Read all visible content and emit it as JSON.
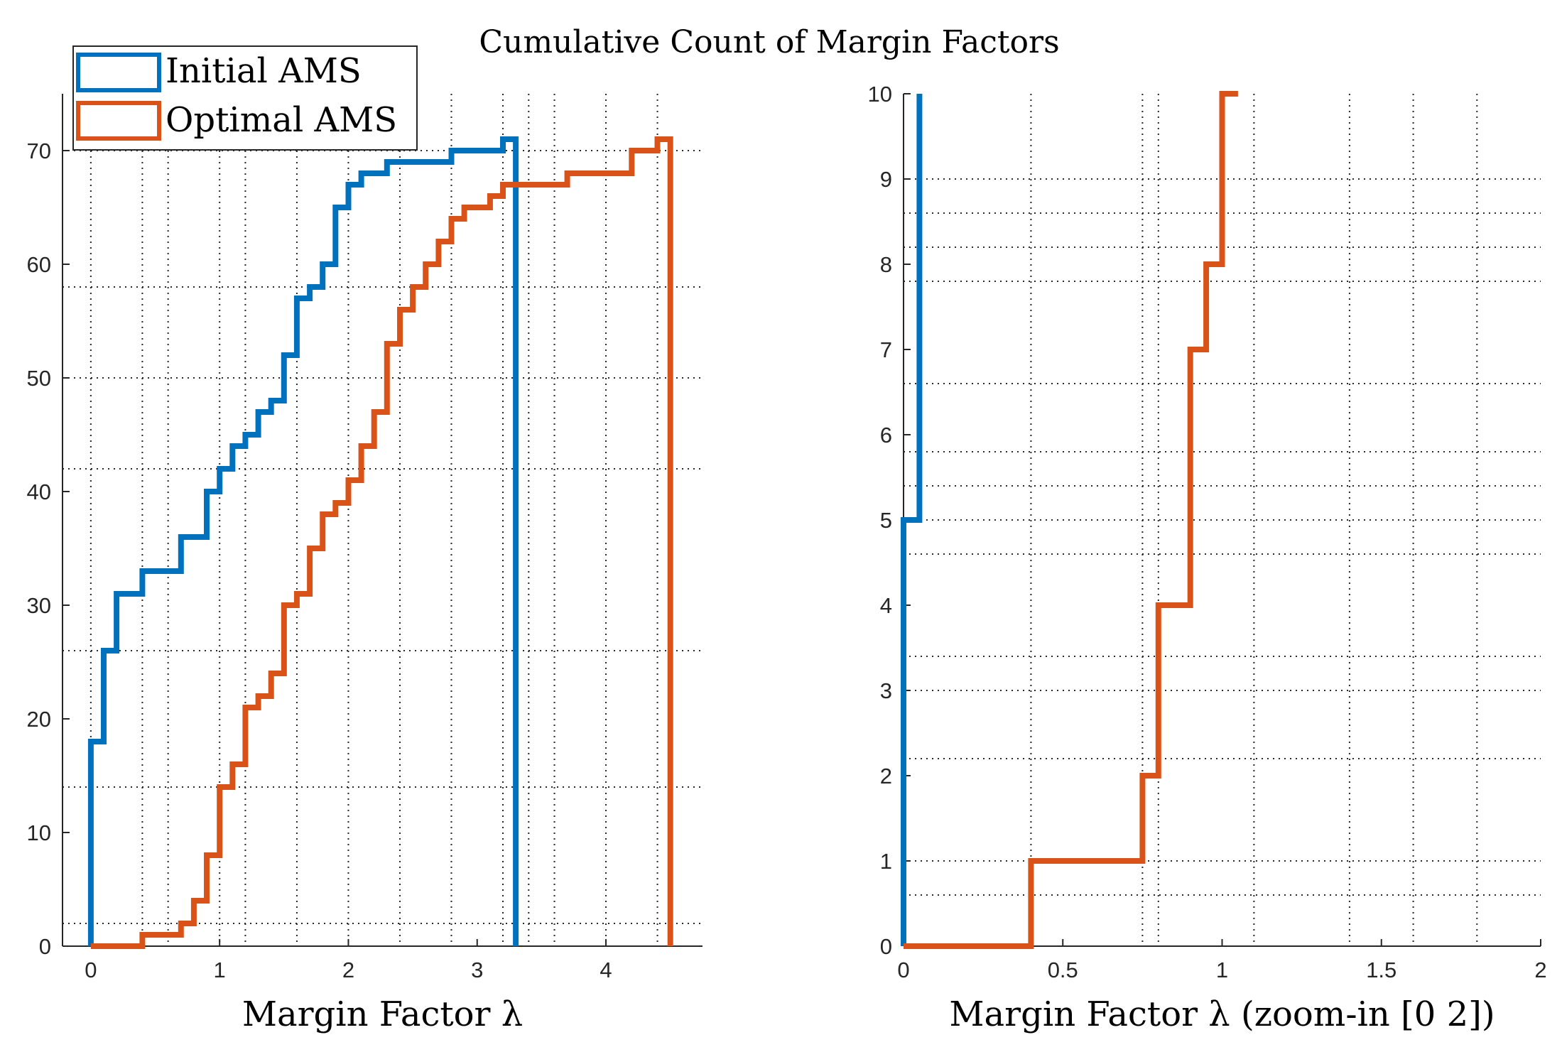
{
  "title": "Cumulative Count of Margin Factors",
  "colors": {
    "initial": "#0072BD",
    "optimal": "#D95319",
    "axis": "#262626",
    "grid": "#262626"
  },
  "legend": {
    "placement": "top-left",
    "items": [
      {
        "label": "Initial AMS",
        "color": "#0072BD"
      },
      {
        "label": "Optimal AMS",
        "color": "#D95319"
      }
    ]
  },
  "chart_data": [
    {
      "type": "line",
      "step": true,
      "xlabel": "Margin Factor λ",
      "ylabel": "",
      "xlim": [
        -0.22,
        4.75
      ],
      "ylim": [
        0,
        75
      ],
      "xticks": [
        0,
        1,
        2,
        3,
        4
      ],
      "yticks": [
        0,
        10,
        20,
        30,
        40,
        50,
        60,
        70
      ],
      "xtick_labels": [
        "0",
        "1",
        "2",
        "3",
        "4"
      ],
      "ytick_labels": [
        "0",
        "10",
        "20",
        "30",
        "40",
        "50",
        "60",
        "70"
      ],
      "grid": true,
      "grid_x": [
        0,
        0.4,
        0.6,
        1,
        1.2,
        1.6,
        2,
        2.4,
        2.8,
        3.2,
        3.4,
        3.6,
        4,
        4.4
      ],
      "grid_y": [
        2,
        14,
        26,
        42,
        50,
        58,
        70
      ],
      "series": [
        {
          "name": "Initial AMS",
          "color": "#0072BD",
          "points": [
            [
              0,
              0
            ],
            [
              0,
              18
            ],
            [
              0.1,
              18
            ],
            [
              0.1,
              26
            ],
            [
              0.2,
              26
            ],
            [
              0.2,
              31
            ],
            [
              0.4,
              31
            ],
            [
              0.4,
              33
            ],
            [
              0.7,
              33
            ],
            [
              0.7,
              36
            ],
            [
              0.9,
              36
            ],
            [
              0.9,
              40
            ],
            [
              1.0,
              40
            ],
            [
              1.0,
              42
            ],
            [
              1.1,
              42
            ],
            [
              1.1,
              44
            ],
            [
              1.2,
              44
            ],
            [
              1.2,
              45
            ],
            [
              1.3,
              45
            ],
            [
              1.3,
              47
            ],
            [
              1.4,
              47
            ],
            [
              1.4,
              48
            ],
            [
              1.5,
              48
            ],
            [
              1.5,
              52
            ],
            [
              1.6,
              52
            ],
            [
              1.6,
              57
            ],
            [
              1.7,
              57
            ],
            [
              1.7,
              58
            ],
            [
              1.8,
              58
            ],
            [
              1.8,
              60
            ],
            [
              1.9,
              60
            ],
            [
              1.9,
              65
            ],
            [
              2.0,
              65
            ],
            [
              2.0,
              67
            ],
            [
              2.1,
              67
            ],
            [
              2.1,
              68
            ],
            [
              2.3,
              68
            ],
            [
              2.3,
              69
            ],
            [
              2.8,
              69
            ],
            [
              2.8,
              70
            ],
            [
              3.2,
              70
            ],
            [
              3.2,
              71
            ],
            [
              3.3,
              71
            ],
            [
              3.3,
              0
            ]
          ]
        },
        {
          "name": "Optimal AMS",
          "color": "#D95319",
          "points": [
            [
              0,
              0
            ],
            [
              0.4,
              0
            ],
            [
              0.4,
              1
            ],
            [
              0.7,
              1
            ],
            [
              0.7,
              2
            ],
            [
              0.8,
              2
            ],
            [
              0.8,
              4
            ],
            [
              0.9,
              4
            ],
            [
              0.9,
              8
            ],
            [
              1.0,
              8
            ],
            [
              1.0,
              14
            ],
            [
              1.1,
              14
            ],
            [
              1.1,
              16
            ],
            [
              1.2,
              16
            ],
            [
              1.2,
              21
            ],
            [
              1.3,
              21
            ],
            [
              1.3,
              22
            ],
            [
              1.4,
              22
            ],
            [
              1.4,
              24
            ],
            [
              1.5,
              24
            ],
            [
              1.5,
              30
            ],
            [
              1.6,
              30
            ],
            [
              1.6,
              31
            ],
            [
              1.7,
              31
            ],
            [
              1.7,
              35
            ],
            [
              1.8,
              35
            ],
            [
              1.8,
              38
            ],
            [
              1.9,
              38
            ],
            [
              1.9,
              39
            ],
            [
              2.0,
              39
            ],
            [
              2.0,
              41
            ],
            [
              2.1,
              41
            ],
            [
              2.1,
              44
            ],
            [
              2.2,
              44
            ],
            [
              2.2,
              47
            ],
            [
              2.3,
              47
            ],
            [
              2.3,
              53
            ],
            [
              2.4,
              53
            ],
            [
              2.4,
              56
            ],
            [
              2.5,
              56
            ],
            [
              2.5,
              58
            ],
            [
              2.6,
              58
            ],
            [
              2.6,
              60
            ],
            [
              2.7,
              60
            ],
            [
              2.7,
              62
            ],
            [
              2.8,
              62
            ],
            [
              2.8,
              64
            ],
            [
              2.9,
              64
            ],
            [
              2.9,
              65
            ],
            [
              3.1,
              65
            ],
            [
              3.1,
              66
            ],
            [
              3.2,
              66
            ],
            [
              3.2,
              67
            ],
            [
              3.7,
              67
            ],
            [
              3.7,
              68
            ],
            [
              4.2,
              68
            ],
            [
              4.2,
              70
            ],
            [
              4.4,
              70
            ],
            [
              4.4,
              71
            ],
            [
              4.5,
              71
            ],
            [
              4.5,
              0
            ]
          ]
        }
      ]
    },
    {
      "type": "line",
      "step": true,
      "xlabel": "Margin Factor λ (zoom-in [0 2])",
      "ylabel": "",
      "xlim": [
        0,
        2
      ],
      "ylim": [
        0,
        10
      ],
      "xticks": [
        0,
        0.5,
        1,
        1.5,
        2
      ],
      "yticks": [
        0,
        1,
        2,
        3,
        4,
        5,
        6,
        7,
        8,
        9,
        10
      ],
      "xtick_labels": [
        "0",
        "0.5",
        "1",
        "1.5",
        "2"
      ],
      "ytick_labels": [
        "0",
        "1",
        "2",
        "3",
        "4",
        "5",
        "6",
        "7",
        "8",
        "9",
        "10"
      ],
      "grid": true,
      "grid_x": [
        0.4,
        0.75,
        0.8,
        1.1,
        1.4,
        1.6,
        1.8
      ],
      "grid_y": [
        0.6,
        1,
        2.2,
        3,
        3.4,
        4.6,
        5,
        5.4,
        5.8,
        6.6,
        7.8,
        8.2,
        8.6,
        9
      ],
      "series": [
        {
          "name": "Initial AMS",
          "color": "#0072BD",
          "points": [
            [
              0,
              0
            ],
            [
              0,
              5
            ],
            [
              0.05,
              5
            ],
            [
              0.05,
              10
            ]
          ]
        },
        {
          "name": "Optimal AMS",
          "color": "#D95319",
          "points": [
            [
              0,
              0
            ],
            [
              0.4,
              0
            ],
            [
              0.4,
              1
            ],
            [
              0.75,
              1
            ],
            [
              0.75,
              2
            ],
            [
              0.8,
              2
            ],
            [
              0.8,
              4
            ],
            [
              0.9,
              4
            ],
            [
              0.9,
              7
            ],
            [
              0.95,
              7
            ],
            [
              0.95,
              8
            ],
            [
              1.0,
              8
            ],
            [
              1.0,
              10
            ],
            [
              1.05,
              10
            ]
          ]
        }
      ]
    }
  ]
}
